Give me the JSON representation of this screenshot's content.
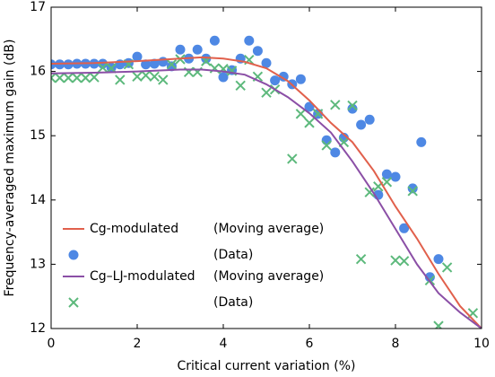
{
  "chart_data": {
    "type": "line",
    "xlabel": "Critical current variation (%)",
    "ylabel": "Frequency-averaged maximum gain (dB)",
    "xlim": [
      0,
      10
    ],
    "ylim": [
      12,
      17
    ],
    "xticks": [
      0,
      2,
      4,
      6,
      8,
      10
    ],
    "yticks": [
      12,
      13,
      14,
      15,
      16,
      17
    ],
    "series": [
      {
        "type": "line",
        "name": "Cg-modulated",
        "note": "(Moving average)",
        "color": "#e1604c",
        "x": [
          0,
          1,
          2,
          3,
          3.5,
          4,
          4.5,
          5,
          5.5,
          6,
          6.5,
          7,
          7.5,
          8,
          8.5,
          9,
          9.5,
          10
        ],
        "values": [
          16.12,
          16.13,
          16.16,
          16.2,
          16.22,
          16.2,
          16.15,
          16.05,
          15.85,
          15.55,
          15.2,
          14.9,
          14.45,
          13.9,
          13.4,
          12.85,
          12.35,
          12.0
        ]
      },
      {
        "type": "scatter",
        "marker": "circle",
        "name": "(Data)",
        "color": "#4e88e4",
        "x": [
          0,
          0.2,
          0.4,
          0.6,
          0.8,
          1.0,
          1.2,
          1.4,
          1.6,
          1.8,
          2.0,
          2.2,
          2.4,
          2.6,
          2.8,
          3.0,
          3.2,
          3.4,
          3.6,
          3.8,
          4.0,
          4.2,
          4.4,
          4.6,
          4.8,
          5.0,
          5.2,
          5.4,
          5.6,
          5.8,
          6.0,
          6.2,
          6.4,
          6.6,
          6.8,
          7.0,
          7.2,
          7.4,
          7.6,
          7.8,
          8.0,
          8.2,
          8.4,
          8.6,
          8.8,
          9.0
        ],
        "values": [
          16.11,
          16.11,
          16.11,
          16.12,
          16.12,
          16.12,
          16.12,
          16.06,
          16.11,
          16.13,
          16.23,
          16.11,
          16.12,
          16.15,
          16.08,
          16.34,
          16.2,
          16.34,
          16.2,
          16.48,
          15.91,
          16.02,
          16.2,
          16.48,
          16.32,
          16.13,
          15.86,
          15.92,
          15.8,
          15.88,
          15.45,
          15.34,
          14.93,
          14.74,
          14.97,
          15.42,
          15.17,
          15.25,
          14.08,
          14.4,
          14.36,
          13.56,
          14.18,
          14.9,
          12.8,
          13.08
        ]
      },
      {
        "type": "line",
        "name": "Cg–LJ-modulated",
        "note": "(Moving average)",
        "color": "#8b4fa6",
        "x": [
          0,
          1,
          2,
          3,
          3.5,
          4,
          4.5,
          5,
          5.5,
          6,
          6.5,
          7,
          7.5,
          8,
          8.5,
          9,
          9.5,
          10
        ],
        "values": [
          15.97,
          15.98,
          16.0,
          16.03,
          16.03,
          16.0,
          15.95,
          15.8,
          15.6,
          15.35,
          15.05,
          14.6,
          14.1,
          13.55,
          13.0,
          12.55,
          12.25,
          12.0
        ]
      },
      {
        "type": "scatter",
        "marker": "x",
        "name": "(Data)",
        "color": "#5db97c",
        "x": [
          0,
          0.2,
          0.4,
          0.6,
          0.8,
          1.0,
          1.2,
          1.4,
          1.6,
          1.8,
          2.0,
          2.2,
          2.4,
          2.6,
          2.8,
          3.0,
          3.2,
          3.4,
          3.6,
          3.8,
          4.0,
          4.2,
          4.4,
          4.6,
          4.8,
          5.0,
          5.2,
          5.6,
          5.8,
          6.0,
          6.2,
          6.4,
          6.6,
          6.8,
          7.0,
          7.2,
          7.4,
          7.6,
          7.8,
          8.0,
          8.2,
          8.4,
          8.8,
          9.0,
          9.2,
          9.8
        ],
        "values": [
          15.9,
          15.9,
          15.9,
          15.9,
          15.9,
          15.91,
          16.06,
          16.05,
          15.87,
          16.11,
          15.92,
          15.94,
          15.92,
          15.87,
          16.11,
          16.19,
          15.99,
          15.99,
          16.16,
          16.05,
          16.04,
          16.01,
          15.78,
          16.18,
          15.92,
          15.67,
          15.72,
          14.64,
          15.34,
          15.2,
          15.34,
          14.85,
          15.48,
          14.9,
          15.47,
          13.08,
          14.12,
          14.21,
          14.28,
          13.06,
          13.05,
          14.14,
          12.75,
          12.04,
          12.95,
          12.24
        ]
      }
    ]
  }
}
